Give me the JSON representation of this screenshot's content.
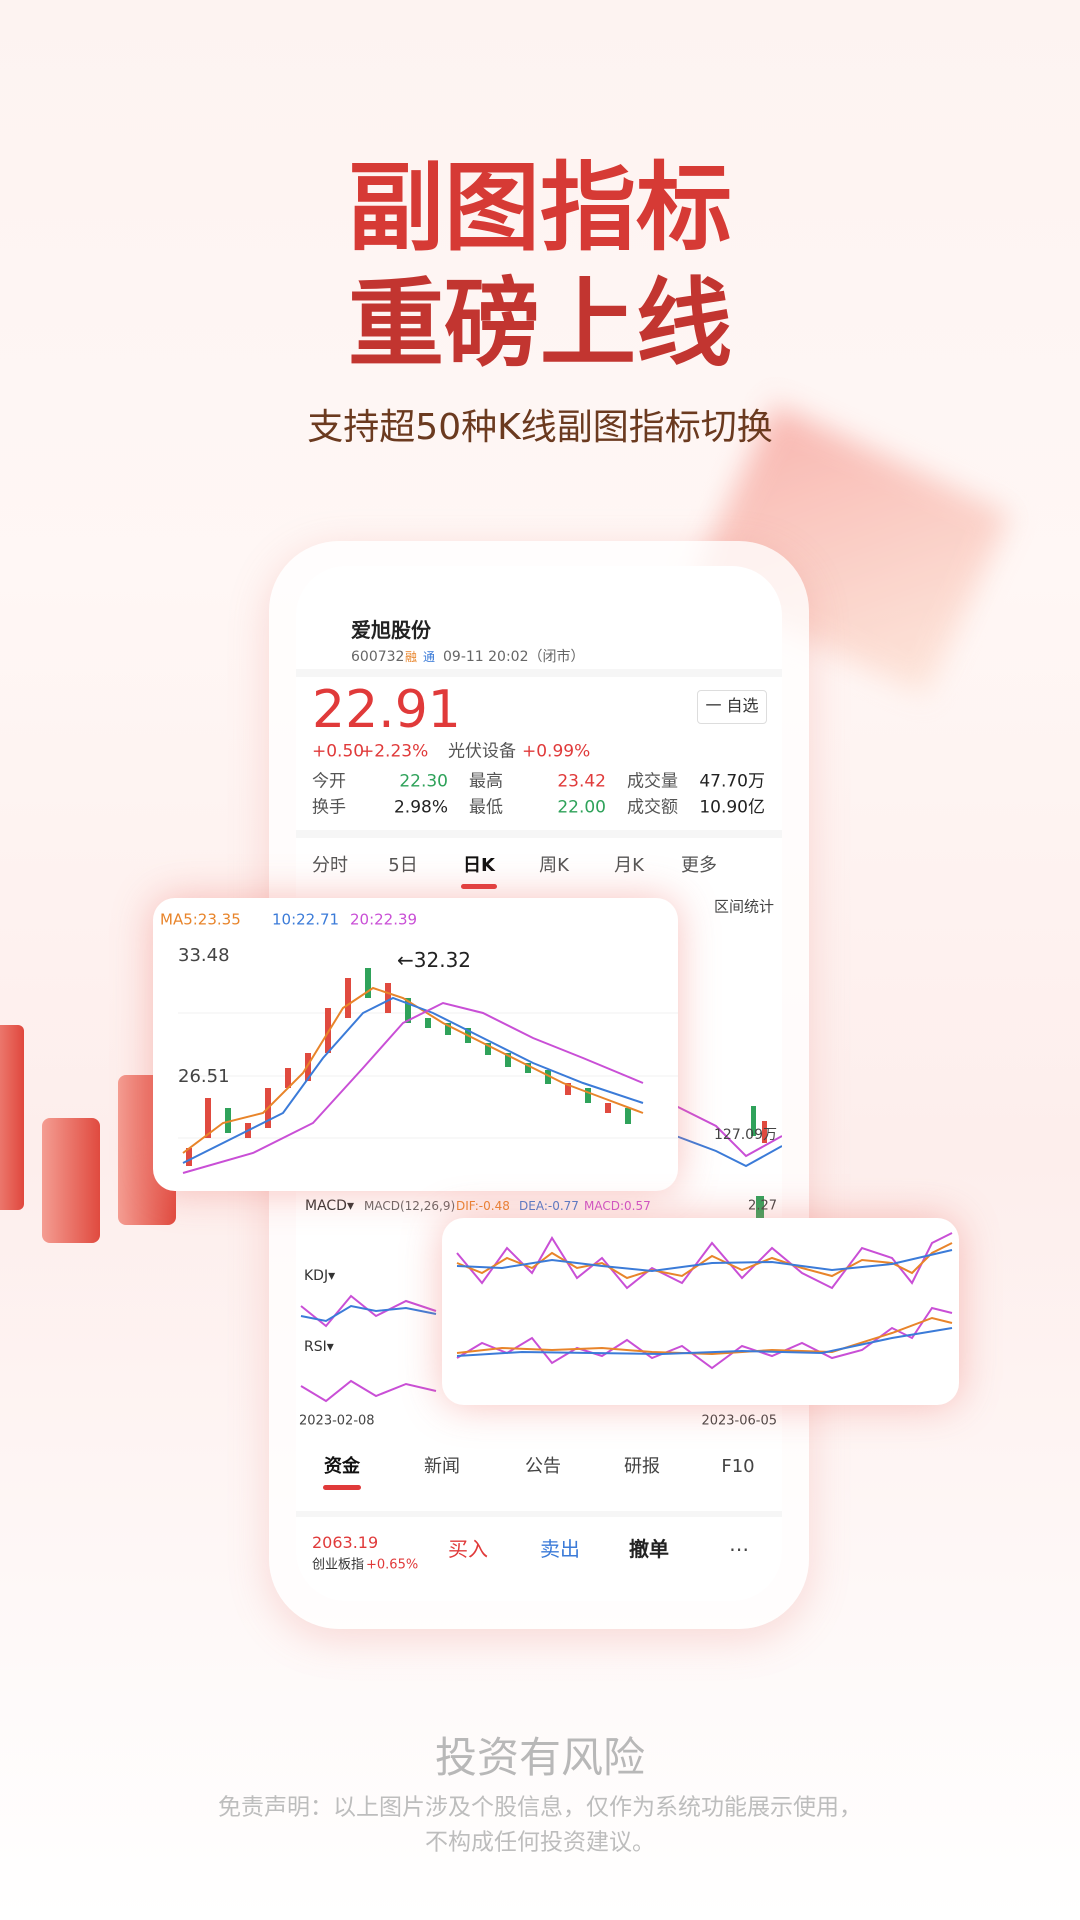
{
  "headline": {
    "line1": "副图指标",
    "line2": "重磅上线",
    "subtitle": "支持超50种K线副图指标切换"
  },
  "stock": {
    "name": "爱旭股份",
    "code": "600732",
    "tags": [
      "融",
      "通"
    ],
    "time": "09-11  20:02（闭市）",
    "price": "22.91",
    "change": "+0.50",
    "change_pct": "+2.23%",
    "sector": "光伏设备",
    "sector_pct": "+0.99%",
    "watch_button": "一 自选"
  },
  "stats": [
    {
      "label": "今开",
      "value": "22.30"
    },
    {
      "label": "最高",
      "value": "23.42"
    },
    {
      "label": "成交量",
      "value": "47.70万"
    },
    {
      "label": "换手",
      "value": "2.98%"
    },
    {
      "label": "最低",
      "value": "22.00"
    },
    {
      "label": "成交额",
      "value": "10.90亿"
    }
  ],
  "tabs": [
    "分时",
    "5日",
    "日K",
    "周K",
    "月K",
    "更多"
  ],
  "range_stats": "区间统计",
  "chart": {
    "ma": [
      "MA5:23.35",
      "10:22.71",
      "20:22.39"
    ],
    "high_label": "33.48",
    "low_label": "26.51",
    "peak_label": "←32.32",
    "volume_label": "127.09万",
    "macd_menu": "MACD▾",
    "macd_params": "MACD(12,26,9)",
    "dif": "DIF:-0.48",
    "dea": "DEA:-0.77",
    "macd": "MACD:0.57",
    "macd_max": "2.27",
    "kdj_menu": "KDJ▾",
    "rsi_menu": "RSI▾",
    "start_date": "2023-02-08",
    "end_date": "2023-06-05"
  },
  "bottom_tabs": [
    "资金",
    "新闻",
    "公告",
    "研报",
    "F10"
  ],
  "index": {
    "value": "2063.19",
    "name": "创业板指",
    "pct": "+0.65%"
  },
  "actions": [
    "买入",
    "卖出",
    "撤单",
    "⋯"
  ],
  "footer": {
    "title": "投资有风险",
    "disclaimer": [
      "免责声明：以上图片涉及个股信息，仅作为系统功能展示使用，",
      "不构成任何投资建议。"
    ]
  }
}
